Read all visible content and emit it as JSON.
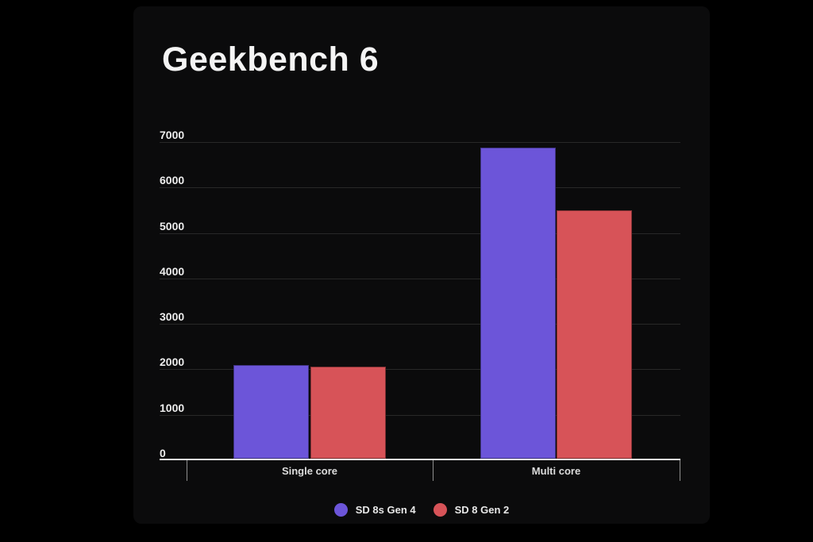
{
  "page": {
    "background_color": "#000000",
    "card_background_color": "#0b0b0c"
  },
  "chart_data": {
    "type": "bar",
    "title": "Geekbench 6",
    "categories": [
      "Single core",
      "Multi core"
    ],
    "series": [
      {
        "name": "SD 8s Gen 4",
        "color": "#6c55d9",
        "values": [
          2060,
          6840
        ]
      },
      {
        "name": "SD 8 Gen 2",
        "color": "#d75358",
        "values": [
          2020,
          5460
        ]
      }
    ],
    "xlabel": "",
    "ylabel": "",
    "ylim": [
      0,
      7000
    ],
    "y_step": 1000,
    "y_tick_labels": [
      "0",
      "1000",
      "2000",
      "3000",
      "4000",
      "5000",
      "6000",
      "7000"
    ],
    "grid": true,
    "gridline_color": "#282828",
    "axis_line_color": "#e6e6e6",
    "legend_position": "bottom"
  }
}
